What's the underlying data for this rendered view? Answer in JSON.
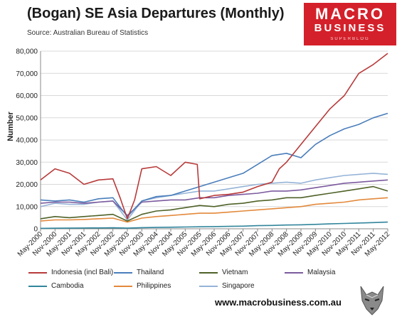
{
  "title": "(Bogan) SE Asia Departures (Monthly)",
  "source": "Source: Australian Bureau of Statistics",
  "logo": {
    "line1": "MACRO",
    "line2": "BUSINESS",
    "line3": "SUPERBLOG"
  },
  "website": "www.macrobusiness.com.au",
  "colors": {
    "logo_bg": "#d4202a"
  },
  "chart_data": {
    "type": "line",
    "title": "(Bogan) SE Asia Departures (Monthly)",
    "xlabel": "",
    "ylabel": "Number",
    "ylim": [
      0,
      80000
    ],
    "yticks": [
      0,
      10000,
      20000,
      30000,
      40000,
      50000,
      60000,
      70000,
      80000
    ],
    "ytick_labels": [
      "0",
      "10,000",
      "20,000",
      "30,000",
      "40,000",
      "50,000",
      "60,000",
      "70,000",
      "80,000"
    ],
    "x_start": "May-2000",
    "x_end": "May-2012",
    "xtick_labels": [
      "May-2000",
      "Nov-2000",
      "May-2001",
      "Nov-2001",
      "May-2002",
      "Nov-2002",
      "May-2003",
      "Nov-2003",
      "May-2004",
      "Nov-2004",
      "May-2005",
      "Nov-2005",
      "May-2006",
      "Nov-2006",
      "May-2007",
      "Nov-2007",
      "May-2008",
      "Nov-2008",
      "May-2009",
      "Nov-2009",
      "May-2010",
      "Nov-2010",
      "May-2011",
      "Nov-2011",
      "May-2012"
    ],
    "legend_position": "bottom",
    "grid": true,
    "series": [
      {
        "name": "Indonesia (incl Bali)",
        "color": "#b83a3a",
        "x": [
          "May-2000",
          "Nov-2000",
          "May-2001",
          "Nov-2001",
          "May-2002",
          "Nov-2002",
          "Feb-2003",
          "May-2003",
          "Aug-2003",
          "Nov-2003",
          "May-2004",
          "Nov-2004",
          "May-2005",
          "Oct-2005",
          "Nov-2005",
          "May-2006",
          "Nov-2006",
          "May-2007",
          "Nov-2007",
          "May-2008",
          "Aug-2008",
          "Nov-2008",
          "May-2009",
          "Nov-2009",
          "May-2010",
          "Nov-2010",
          "May-2011",
          "Nov-2011",
          "May-2012"
        ],
        "values": [
          22000,
          27000,
          25000,
          20000,
          22000,
          22500,
          14000,
          4500,
          13000,
          27000,
          28000,
          24000,
          30000,
          29000,
          13500,
          15000,
          15500,
          16500,
          19000,
          21000,
          27000,
          30000,
          38000,
          46000,
          54000,
          60000,
          70000,
          74000,
          79000
        ]
      },
      {
        "name": "Thailand",
        "color": "#4a7ebb",
        "x": [
          "May-2000",
          "Nov-2000",
          "May-2001",
          "Nov-2001",
          "May-2002",
          "Nov-2002",
          "May-2003",
          "Nov-2003",
          "May-2004",
          "Nov-2004",
          "May-2005",
          "Nov-2005",
          "May-2006",
          "Nov-2006",
          "May-2007",
          "Nov-2007",
          "May-2008",
          "Nov-2008",
          "May-2009",
          "Nov-2009",
          "May-2010",
          "Nov-2010",
          "May-2011",
          "Nov-2011",
          "May-2012"
        ],
        "values": [
          13000,
          12500,
          13000,
          12000,
          13500,
          14000,
          5500,
          12500,
          14500,
          15000,
          17000,
          19000,
          21000,
          23000,
          25000,
          29000,
          33000,
          34000,
          32000,
          38000,
          42000,
          45000,
          47000,
          50000,
          52000
        ]
      },
      {
        "name": "Vietnam",
        "color": "#4f6228",
        "x": [
          "May-2000",
          "Nov-2000",
          "May-2001",
          "Nov-2001",
          "May-2002",
          "Nov-2002",
          "May-2003",
          "Nov-2003",
          "May-2004",
          "Nov-2004",
          "May-2005",
          "Nov-2005",
          "May-2006",
          "Nov-2006",
          "May-2007",
          "Nov-2007",
          "May-2008",
          "Nov-2008",
          "May-2009",
          "Nov-2009",
          "May-2010",
          "Nov-2010",
          "May-2011",
          "Nov-2011",
          "May-2012"
        ],
        "values": [
          4500,
          5500,
          5000,
          5500,
          6000,
          6500,
          3500,
          6500,
          8000,
          8500,
          9500,
          10500,
          10000,
          11000,
          11500,
          12500,
          13000,
          14000,
          14000,
          15000,
          16000,
          17000,
          18000,
          19000,
          17000
        ]
      },
      {
        "name": "Malaysia",
        "color": "#7c5a9e",
        "x": [
          "May-2000",
          "Nov-2000",
          "May-2001",
          "Nov-2001",
          "May-2002",
          "Nov-2002",
          "May-2003",
          "Nov-2003",
          "May-2004",
          "Nov-2004",
          "May-2005",
          "Nov-2005",
          "May-2006",
          "Nov-2006",
          "May-2007",
          "Nov-2007",
          "May-2008",
          "Nov-2008",
          "May-2009",
          "Nov-2009",
          "May-2010",
          "Nov-2010",
          "May-2011",
          "Nov-2011",
          "May-2012"
        ],
        "values": [
          11500,
          12000,
          12000,
          11500,
          12000,
          12500,
          6000,
          12000,
          12500,
          13000,
          13000,
          14000,
          14000,
          15000,
          15500,
          16000,
          17000,
          17000,
          17500,
          18500,
          19500,
          20500,
          21000,
          21500,
          22000
        ]
      },
      {
        "name": "Cambodia",
        "color": "#31859c",
        "x": [
          "May-2000",
          "Nov-2000",
          "May-2001",
          "Nov-2001",
          "May-2002",
          "Nov-2002",
          "May-2003",
          "Nov-2003",
          "May-2004",
          "Nov-2004",
          "May-2005",
          "Nov-2005",
          "May-2006",
          "Nov-2006",
          "May-2007",
          "Nov-2007",
          "May-2008",
          "Nov-2008",
          "May-2009",
          "Nov-2009",
          "May-2010",
          "Nov-2010",
          "May-2011",
          "Nov-2011",
          "May-2012"
        ],
        "values": [
          200,
          250,
          300,
          350,
          400,
          450,
          300,
          500,
          600,
          700,
          800,
          900,
          1000,
          1100,
          1200,
          1400,
          1500,
          1700,
          1800,
          2000,
          2200,
          2400,
          2600,
          2800,
          3000
        ]
      },
      {
        "name": "Philippines",
        "color": "#e3893b",
        "x": [
          "May-2000",
          "Nov-2000",
          "May-2001",
          "Nov-2001",
          "May-2002",
          "Nov-2002",
          "May-2003",
          "Nov-2003",
          "May-2004",
          "Nov-2004",
          "May-2005",
          "Nov-2005",
          "May-2006",
          "Nov-2006",
          "May-2007",
          "Nov-2007",
          "May-2008",
          "Nov-2008",
          "May-2009",
          "Nov-2009",
          "May-2010",
          "Nov-2010",
          "May-2011",
          "Nov-2011",
          "May-2012"
        ],
        "values": [
          3500,
          4000,
          4000,
          4200,
          4500,
          4800,
          3000,
          4800,
          5500,
          6000,
          6500,
          7000,
          7000,
          7500,
          8000,
          8500,
          9000,
          9500,
          10000,
          11000,
          11500,
          12000,
          13000,
          13500,
          14000
        ]
      },
      {
        "name": "Singapore",
        "color": "#95b3d7",
        "x": [
          "May-2000",
          "Nov-2000",
          "May-2001",
          "Nov-2001",
          "May-2002",
          "Nov-2002",
          "May-2003",
          "Nov-2003",
          "May-2004",
          "Nov-2004",
          "May-2005",
          "Nov-2005",
          "May-2006",
          "Nov-2006",
          "May-2007",
          "Nov-2007",
          "May-2008",
          "Nov-2008",
          "May-2009",
          "Nov-2009",
          "May-2010",
          "Nov-2010",
          "May-2011",
          "Nov-2011",
          "May-2012"
        ],
        "values": [
          10000,
          11500,
          11000,
          11000,
          12000,
          12500,
          4000,
          12500,
          14000,
          15000,
          16000,
          17000,
          17000,
          18000,
          19000,
          20000,
          20500,
          21000,
          20500,
          22000,
          23000,
          24000,
          24500,
          25000,
          24500
        ]
      }
    ]
  }
}
